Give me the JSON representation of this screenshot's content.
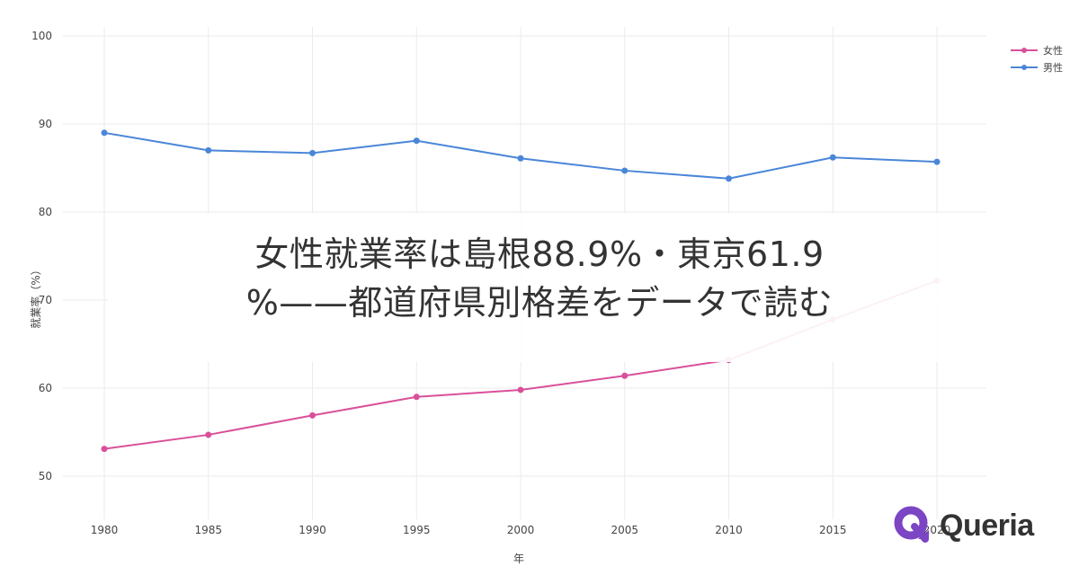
{
  "headline": {
    "line1": "女性就業率は島根88.9%・東京61.9",
    "line2": "%——都道府県別格差をデータで読む"
  },
  "brand": {
    "name": "Queria",
    "logo_icon": "q-arrow-logo-icon",
    "logo_color": "#7B45C4"
  },
  "legend": {
    "items": [
      {
        "label": "女性",
        "color": "#D9509A"
      },
      {
        "label": "男性",
        "color": "#4A86D8"
      }
    ]
  },
  "axes": {
    "x_title": "年",
    "y_title": "就業率（%）"
  },
  "chart_data": {
    "type": "line",
    "title": "",
    "xlabel": "年",
    "ylabel": "就業率（%）",
    "x": [
      1980,
      1985,
      1990,
      1995,
      2000,
      2005,
      2010,
      2015,
      2020
    ],
    "x_ticks": [
      "1980",
      "1985",
      "1990",
      "1995",
      "2000",
      "2005",
      "2010",
      "2015",
      "2020"
    ],
    "y_ticks": [
      50,
      60,
      70,
      80,
      90,
      100
    ],
    "ylim": [
      46,
      100
    ],
    "grid": true,
    "legend_position": "top-right",
    "series": [
      {
        "name": "女性",
        "color": "#D9509A",
        "values": [
          53.1,
          54.7,
          56.9,
          59.0,
          59.8,
          61.4,
          63.2,
          67.8,
          72.2
        ]
      },
      {
        "name": "男性",
        "color": "#4A86D8",
        "values": [
          89.0,
          87.0,
          86.7,
          88.1,
          86.1,
          84.7,
          83.8,
          86.2,
          85.7
        ]
      }
    ]
  }
}
